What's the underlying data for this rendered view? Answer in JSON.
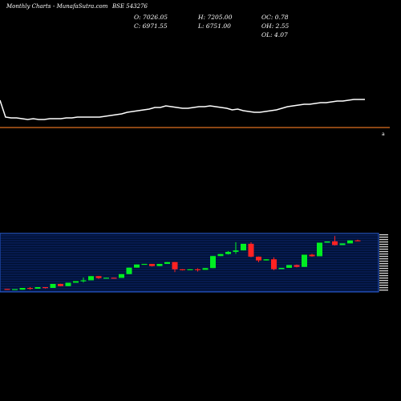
{
  "header": {
    "brand": "Monthly Charts",
    "site": "- MunafaSutra.com",
    "symbol": "BSE 543276"
  },
  "ohlc": {
    "open": "O: 7026.05",
    "high": "H: 7205.00",
    "oc": "OC: 0.78",
    "close": "C: 6971.55",
    "low": "L: 6751.00",
    "oh": "OH: 2.55",
    "ol": "OL: 4.07"
  },
  "colors": {
    "background": "#000000",
    "price_line": "#ffffff",
    "divider": "#e07020",
    "bull": "#00ee22",
    "bear": "#ff2222",
    "band_fill": "#001030",
    "band_border": "#2a5fd8",
    "band_lines": "#1a3aa8"
  },
  "chart_data": {
    "type": "candlestick",
    "line_series": [
      125,
      146,
      147,
      147,
      148,
      149,
      148,
      149,
      149,
      148,
      148,
      148,
      147,
      147,
      146,
      146,
      146,
      146,
      146,
      145,
      144,
      143,
      142,
      140,
      139,
      138,
      137,
      136,
      134,
      134,
      132,
      133,
      134,
      135,
      135,
      134,
      133,
      133,
      132,
      133,
      134,
      135,
      137,
      136,
      138,
      139,
      140,
      140,
      139,
      138,
      137,
      135,
      133,
      132,
      131,
      130,
      130,
      129,
      128,
      128,
      127,
      126,
      126,
      125,
      124,
      124,
      124
    ],
    "candles": [
      [
        0.7,
        0.7,
        0.3,
        0.2
      ],
      [
        0.2,
        0.3,
        0.6,
        0.8
      ],
      [
        0.3,
        0.1,
        1.2,
        1.5
      ],
      [
        1.2,
        1.6,
        0.8,
        0.3
      ],
      [
        0.8,
        0.6,
        1.6,
        1.8
      ],
      [
        1.6,
        1.6,
        1.2,
        0.9
      ],
      [
        1.2,
        1.1,
        3.2,
        3.5
      ],
      [
        3.2,
        3.3,
        2.1,
        2.0
      ],
      [
        2.1,
        2.3,
        3.8,
        4.0
      ],
      [
        3.8,
        3.9,
        4.6,
        4.8
      ],
      [
        4.6,
        6.4,
        5.0,
        3.9
      ],
      [
        5.0,
        4.9,
        7.1,
        7.3
      ],
      [
        7.1,
        7.1,
        6.1,
        5.7
      ],
      [
        6.1,
        6.0,
        6.3,
        6.5
      ],
      [
        6.3,
        6.1,
        6.2,
        6.2
      ],
      [
        6.2,
        6.1,
        8.1,
        8.3
      ],
      [
        8.1,
        8.1,
        11.3,
        11.4
      ],
      [
        11.3,
        11.4,
        12.9,
        13.1
      ],
      [
        12.9,
        13.0,
        13.2,
        13.4
      ],
      [
        13.2,
        13.1,
        12.1,
        11.9
      ],
      [
        12.1,
        11.9,
        13.2,
        13.4
      ],
      [
        13.2,
        13.3,
        14.1,
        14.3
      ],
      [
        14.1,
        14.2,
        10.5,
        9.1
      ],
      [
        10.5,
        10.6,
        10.1,
        9.9
      ],
      [
        10.1,
        10.1,
        10.5,
        10.6
      ],
      [
        10.5,
        11.0,
        10.2,
        9.4
      ],
      [
        10.2,
        10.0,
        11.1,
        11.3
      ],
      [
        11.1,
        11.1,
        17.1,
        17.3
      ],
      [
        17.1,
        17.3,
        18.1,
        18.4
      ],
      [
        18.1,
        19.6,
        19.2,
        17.9
      ],
      [
        19.2,
        24.0,
        19.9,
        18.2
      ],
      [
        19.9,
        20.0,
        23.2,
        26.9
      ],
      [
        23.2,
        24.0,
        16.8,
        16.5
      ],
      [
        16.8,
        16.9,
        14.9,
        14.0
      ],
      [
        14.9,
        15.3,
        15.5,
        15.7
      ],
      [
        15.5,
        16.5,
        10.6,
        10.0
      ],
      [
        10.6,
        10.6,
        11.2,
        11.8
      ],
      [
        11.2,
        11.4,
        12.6,
        14.0
      ],
      [
        12.6,
        12.9,
        11.7,
        11.4
      ],
      [
        11.7,
        11.6,
        17.8,
        18.0
      ],
      [
        17.8,
        18.2,
        17.0,
        16.8
      ],
      [
        17.0,
        16.8,
        23.8,
        24.0
      ],
      [
        23.8,
        24.0,
        24.4,
        26.2
      ],
      [
        24.4,
        27.1,
        22.6,
        22.3
      ],
      [
        22.6,
        22.4,
        23.4,
        23.6
      ],
      [
        23.4,
        23.2,
        24.9,
        27.0
      ],
      [
        24.9,
        25.3,
        24.7,
        24.4
      ]
    ]
  }
}
